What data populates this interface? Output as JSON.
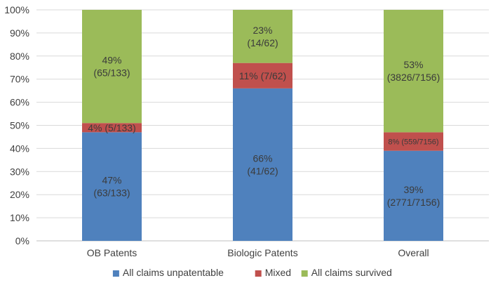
{
  "chart_data": {
    "type": "bar",
    "stacked": true,
    "percent": true,
    "categories": [
      "OB  Patents",
      "Biologic Patents",
      "Overall"
    ],
    "series": [
      {
        "name": "All claims unpatentable",
        "color": "#4f81bd",
        "values": [
          47,
          66,
          39
        ],
        "labels": [
          [
            "47%",
            "(63/133)"
          ],
          [
            "66%",
            "(41/62)"
          ],
          [
            "39%",
            "(2771/7156)"
          ]
        ]
      },
      {
        "name": "Mixed",
        "color": "#c0504d",
        "values": [
          4,
          11,
          8
        ],
        "labels": [
          [
            "4% (5/133)"
          ],
          [
            "11% (7/62)"
          ],
          [
            "8% (559/7156)"
          ]
        ]
      },
      {
        "name": "All claims survived",
        "color": "#9bbb59",
        "values": [
          49,
          23,
          53
        ],
        "labels": [
          [
            "49%",
            "(65/133)"
          ],
          [
            "23%",
            "(14/62)"
          ],
          [
            "53%",
            "(3826/7156)"
          ]
        ]
      }
    ],
    "y_ticks": [
      "0%",
      "10%",
      "20%",
      "30%",
      "40%",
      "50%",
      "60%",
      "70%",
      "80%",
      "90%",
      "100%"
    ],
    "ylim": [
      0,
      100
    ],
    "grid": true,
    "legend_position": "bottom"
  }
}
